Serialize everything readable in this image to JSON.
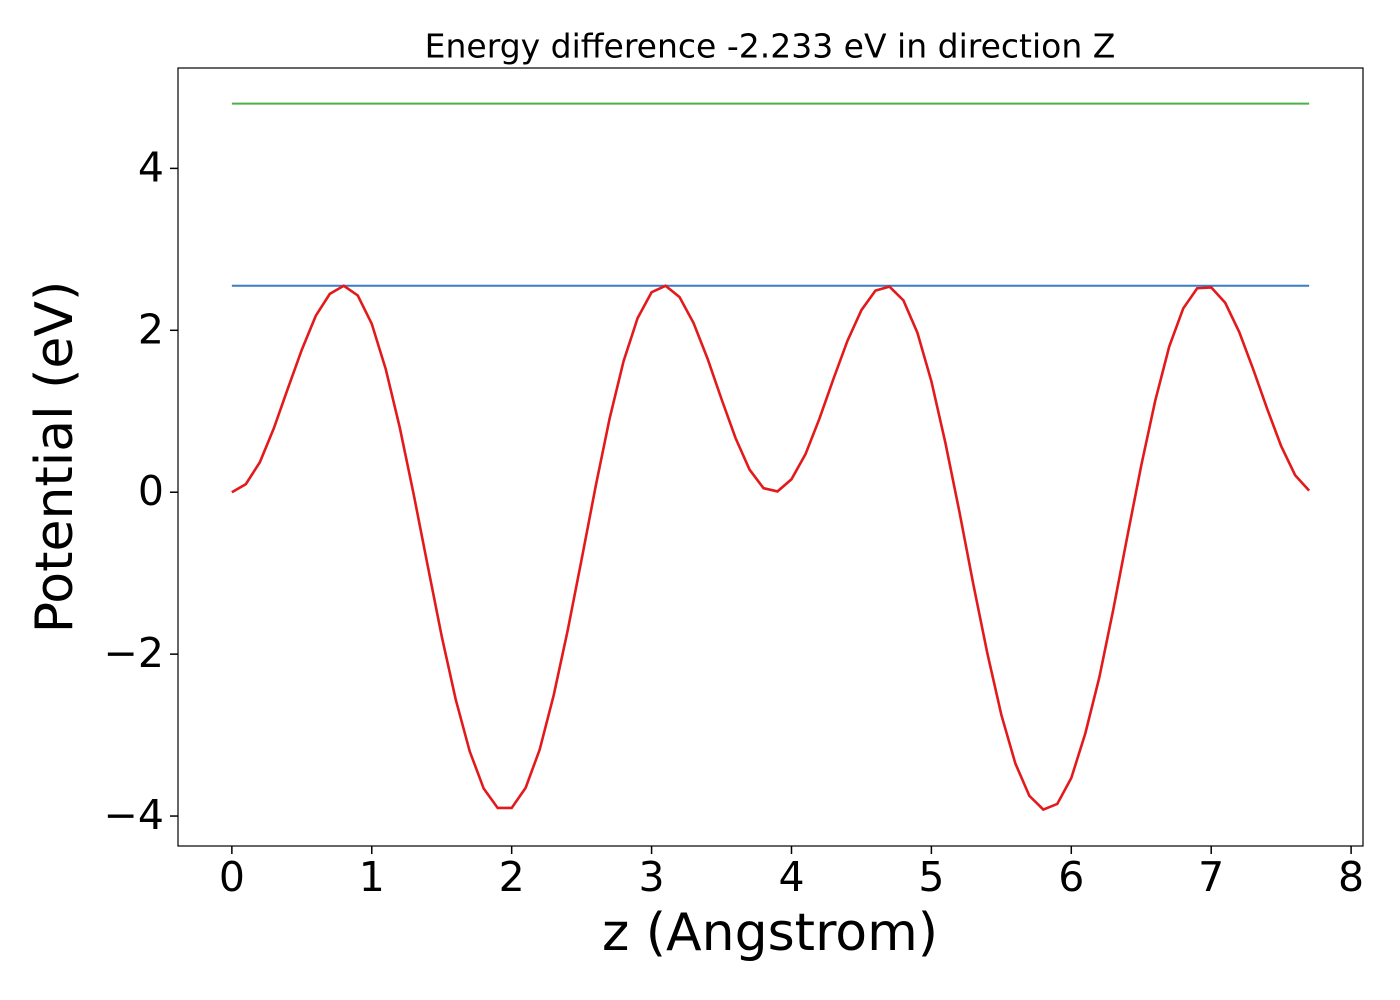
{
  "chart_data": {
    "type": "line",
    "title": "Energy difference -2.233 eV in direction Z",
    "xlabel": "z (Angstrom)",
    "ylabel": "Potential (eV)",
    "xlim": [
      -0.385,
      8.085
    ],
    "ylim": [
      -4.37,
      5.24
    ],
    "xticks": [
      0,
      1,
      2,
      3,
      4,
      5,
      6,
      7,
      8
    ],
    "yticks": [
      {
        "value": -4,
        "label": "−4"
      },
      {
        "value": -2,
        "label": "−2"
      },
      0,
      2,
      4
    ],
    "series": [
      {
        "color": "#e31a1c",
        "x": [
          0,
          0.1,
          0.2,
          0.3,
          0.4,
          0.5,
          0.6,
          0.7,
          0.8,
          0.9,
          1.0,
          1.1,
          1.2,
          1.3,
          1.4,
          1.5,
          1.6,
          1.7,
          1.8,
          1.9,
          2.0,
          2.1,
          2.2,
          2.3,
          2.4,
          2.5,
          2.6,
          2.7,
          2.8,
          2.9,
          3.0,
          3.1,
          3.2,
          3.3,
          3.4,
          3.5,
          3.6,
          3.7,
          3.8,
          3.9,
          4.0,
          4.1,
          4.2,
          4.3,
          4.4,
          4.5,
          4.6,
          4.7,
          4.8,
          4.9,
          5.0,
          5.1,
          5.2,
          5.3,
          5.4,
          5.5,
          5.6,
          5.7,
          5.8,
          5.9,
          6.0,
          6.1,
          6.2,
          6.3,
          6.4,
          6.5,
          6.6,
          6.7,
          6.8,
          6.9,
          7.0,
          7.1,
          7.2,
          7.3,
          7.4,
          7.5,
          7.6,
          7.7
        ],
        "values": [
          0,
          0.1,
          0.37,
          0.79,
          1.28,
          1.76,
          2.18,
          2.45,
          2.55,
          2.43,
          2.08,
          1.52,
          0.8,
          -0.03,
          -0.91,
          -1.78,
          -2.56,
          -3.2,
          -3.66,
          -3.9,
          -3.9,
          -3.65,
          -3.18,
          -2.51,
          -1.71,
          -0.83,
          0.07,
          0.91,
          1.62,
          2.15,
          2.47,
          2.55,
          2.41,
          2.09,
          1.65,
          1.15,
          0.67,
          0.28,
          0.05,
          0.01,
          0.16,
          0.47,
          0.91,
          1.4,
          1.87,
          2.25,
          2.49,
          2.54,
          2.37,
          1.97,
          1.37,
          0.61,
          -0.24,
          -1.14,
          -1.99,
          -2.75,
          -3.35,
          -3.75,
          -3.92,
          -3.85,
          -3.53,
          -2.98,
          -2.29,
          -1.45,
          -0.55,
          0.33,
          1.13,
          1.8,
          2.27,
          2.52,
          2.53,
          2.34,
          1.98,
          1.52,
          1.03,
          0.57,
          0.21,
          0.02
        ]
      },
      {
        "color": "#3a7fc1",
        "x": [
          0,
          7.7
        ],
        "values": [
          2.55,
          2.55
        ]
      },
      {
        "color": "#4daf4a",
        "x": [
          0,
          7.7
        ],
        "values": [
          4.8,
          4.8
        ]
      }
    ]
  }
}
